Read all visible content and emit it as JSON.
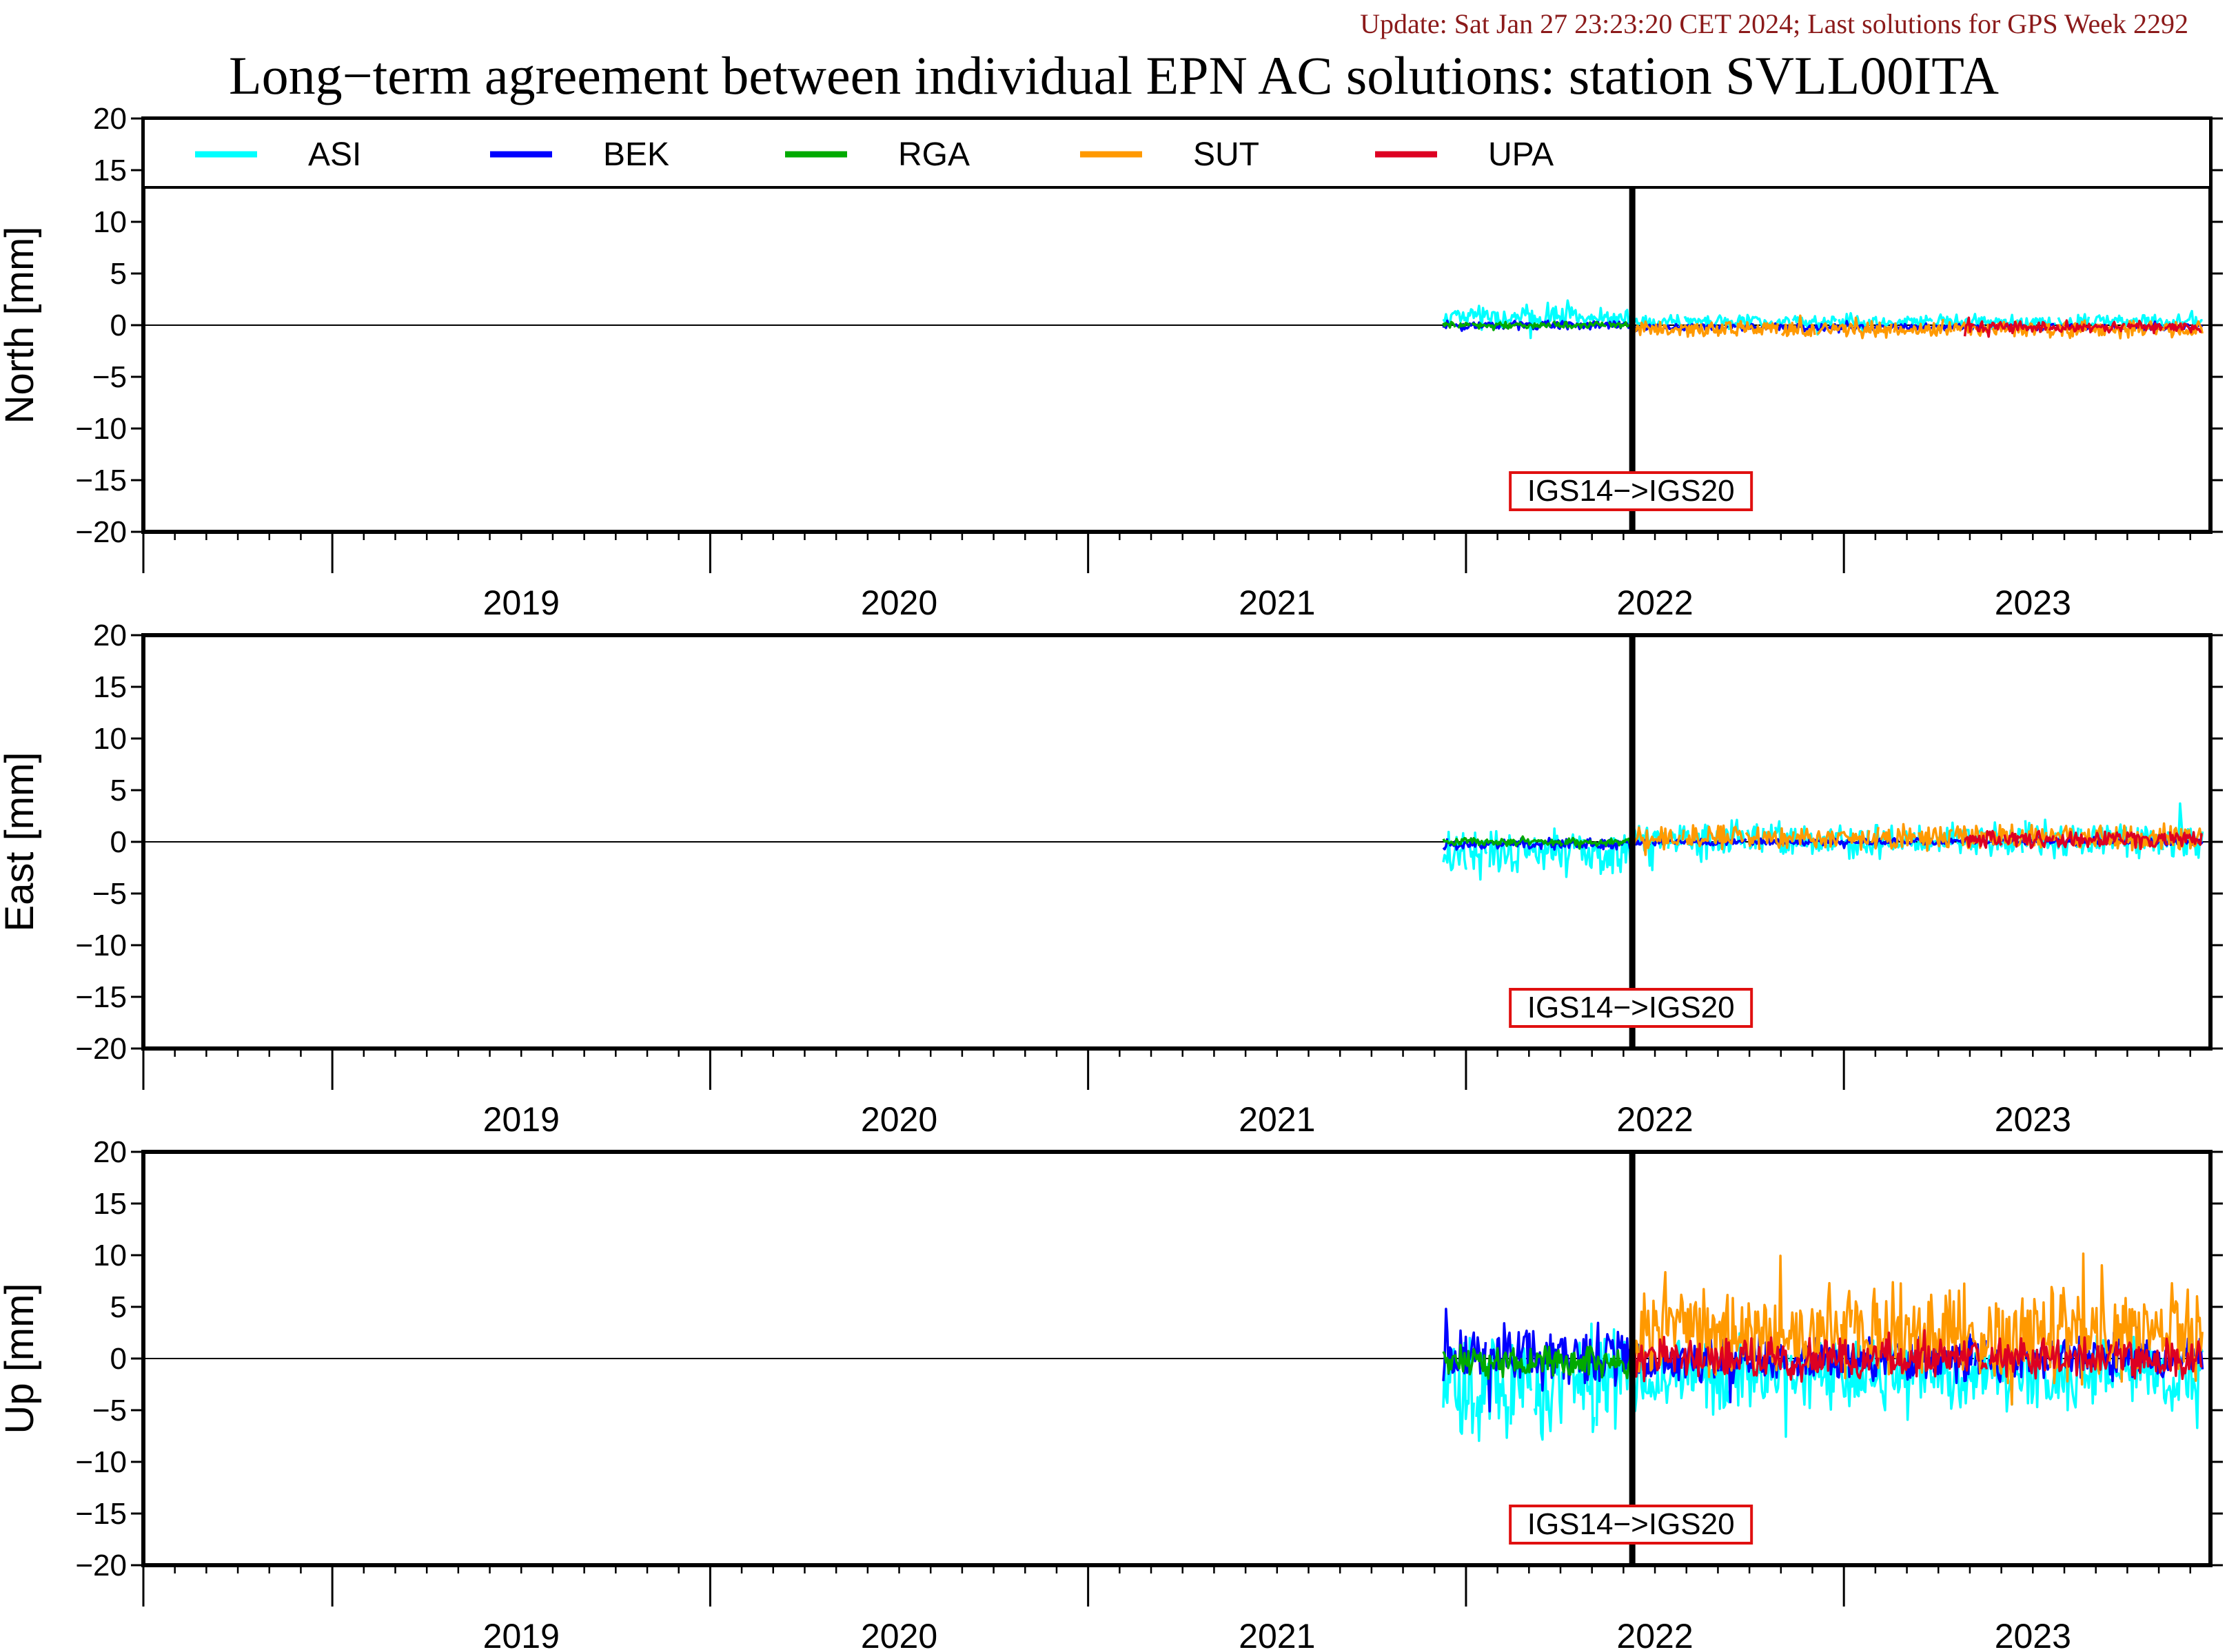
{
  "header": {
    "update_text": "Update: Sat Jan 27 23:23:20 CET 2024; Last solutions for GPS Week 2292",
    "title": "Long−term agreement between individual EPN AC solutions: station SVLL00ITA"
  },
  "legend": [
    {
      "name": "ASI",
      "color": "#00ffff"
    },
    {
      "name": "BEK",
      "color": "#0000ff"
    },
    {
      "name": "RGA",
      "color": "#00aa00"
    },
    {
      "name": "SUT",
      "color": "#ff9900"
    },
    {
      "name": "UPA",
      "color": "#dd0022"
    }
  ],
  "chart_data": [
    {
      "type": "line",
      "ylabel": "North [mm]",
      "ylim": [
        -20,
        20
      ],
      "yticks": [
        "20",
        "15",
        "10",
        "5",
        "0",
        "−5",
        "−10",
        "−15",
        "−20"
      ],
      "xlim": [
        2018.5,
        2023.97
      ],
      "year_labels": [
        "2019",
        "2020",
        "2021",
        "2022",
        "2023"
      ],
      "frame_change": {
        "x": 2022.44,
        "label": "IGS14−>IGS20"
      },
      "series": [
        {
          "name": "ASI",
          "color": "#00ffff",
          "x_start": 2021.94,
          "x_end": 2023.95,
          "offset_pre": 0.8,
          "offset_post": 0.3,
          "amp_pre": 1.2,
          "amp_post": 0.8,
          "seed": 11
        },
        {
          "name": "BEK",
          "color": "#0000ff",
          "x_start": 2021.94,
          "x_end": 2023.95,
          "offset_pre": 0.0,
          "offset_post": -0.2,
          "amp_pre": 0.5,
          "amp_post": 0.4,
          "seed": 12
        },
        {
          "name": "RGA",
          "color": "#00aa00",
          "x_start": 2021.94,
          "x_end": 2022.44,
          "offset_pre": 0.0,
          "offset_post": 0.0,
          "amp_pre": 0.4,
          "amp_post": 0.4,
          "seed": 13
        },
        {
          "name": "SUT",
          "color": "#ff9900",
          "x_start": 2022.44,
          "x_end": 2023.95,
          "offset_pre": -0.4,
          "offset_post": -0.4,
          "amp_pre": 0.9,
          "amp_post": 0.9,
          "seed": 14
        },
        {
          "name": "UPA",
          "color": "#dd0022",
          "x_start": 2023.32,
          "x_end": 2023.95,
          "offset_pre": -0.2,
          "offset_post": -0.2,
          "amp_pre": 0.7,
          "amp_post": 0.7,
          "seed": 15
        }
      ]
    },
    {
      "type": "line",
      "ylabel": "East [mm]",
      "ylim": [
        -20,
        20
      ],
      "yticks": [
        "20",
        "15",
        "10",
        "5",
        "0",
        "−5",
        "−10",
        "−15",
        "−20"
      ],
      "xlim": [
        2018.5,
        2023.97
      ],
      "year_labels": [
        "2019",
        "2020",
        "2021",
        "2022",
        "2023"
      ],
      "frame_change": {
        "x": 2022.44,
        "label": "IGS14−>IGS20"
      },
      "series": [
        {
          "name": "ASI",
          "color": "#00ffff",
          "x_start": 2021.94,
          "x_end": 2023.95,
          "offset_pre": -1.2,
          "offset_post": 0.2,
          "amp_pre": 2.8,
          "amp_post": 2.0,
          "seed": 21
        },
        {
          "name": "BEK",
          "color": "#0000ff",
          "x_start": 2021.94,
          "x_end": 2023.95,
          "offset_pre": -0.2,
          "offset_post": 0.0,
          "amp_pre": 0.6,
          "amp_post": 0.4,
          "seed": 22
        },
        {
          "name": "RGA",
          "color": "#00aa00",
          "x_start": 2021.94,
          "x_end": 2022.44,
          "offset_pre": 0.0,
          "offset_post": 0.0,
          "amp_pre": 0.5,
          "amp_post": 0.5,
          "seed": 23
        },
        {
          "name": "SUT",
          "color": "#ff9900",
          "x_start": 2022.44,
          "x_end": 2023.95,
          "offset_pre": 0.4,
          "offset_post": 0.4,
          "amp_pre": 1.4,
          "amp_post": 1.4,
          "seed": 24
        },
        {
          "name": "UPA",
          "color": "#dd0022",
          "x_start": 2023.32,
          "x_end": 2023.95,
          "offset_pre": 0.2,
          "offset_post": 0.2,
          "amp_pre": 1.0,
          "amp_post": 1.0,
          "seed": 25
        }
      ]
    },
    {
      "type": "line",
      "ylabel": "Up [mm]",
      "ylim": [
        -20,
        20
      ],
      "yticks": [
        "20",
        "15",
        "10",
        "5",
        "0",
        "−5",
        "−10",
        "−15",
        "−20"
      ],
      "xlim": [
        2018.5,
        2023.97
      ],
      "year_labels": [
        "2019",
        "2020",
        "2021",
        "2022",
        "2023"
      ],
      "frame_change": {
        "x": 2022.44,
        "label": "IGS14−>IGS20"
      },
      "series": [
        {
          "name": "ASI",
          "color": "#00ffff",
          "x_start": 2021.94,
          "x_end": 2023.95,
          "offset_pre": -2.5,
          "offset_post": -1.5,
          "amp_pre": 6.0,
          "amp_post": 4.0,
          "seed": 31
        },
        {
          "name": "BEK",
          "color": "#0000ff",
          "x_start": 2021.94,
          "x_end": 2023.95,
          "offset_pre": 0.5,
          "offset_post": 0.0,
          "amp_pre": 3.5,
          "amp_post": 2.5,
          "seed": 32
        },
        {
          "name": "RGA",
          "color": "#00aa00",
          "x_start": 2021.94,
          "x_end": 2022.44,
          "offset_pre": -0.3,
          "offset_post": 0.0,
          "amp_pre": 1.8,
          "amp_post": 1.8,
          "seed": 33
        },
        {
          "name": "SUT",
          "color": "#ff9900",
          "x_start": 2022.44,
          "x_end": 2023.95,
          "offset_pre": 2.5,
          "offset_post": 2.5,
          "amp_pre": 5.5,
          "amp_post": 5.5,
          "seed": 34
        },
        {
          "name": "UPA",
          "color": "#dd0022",
          "x_start": 2022.44,
          "x_end": 2023.95,
          "offset_pre": 0.0,
          "offset_post": 0.0,
          "amp_pre": 2.5,
          "amp_post": 2.5,
          "seed": 35
        }
      ]
    }
  ]
}
